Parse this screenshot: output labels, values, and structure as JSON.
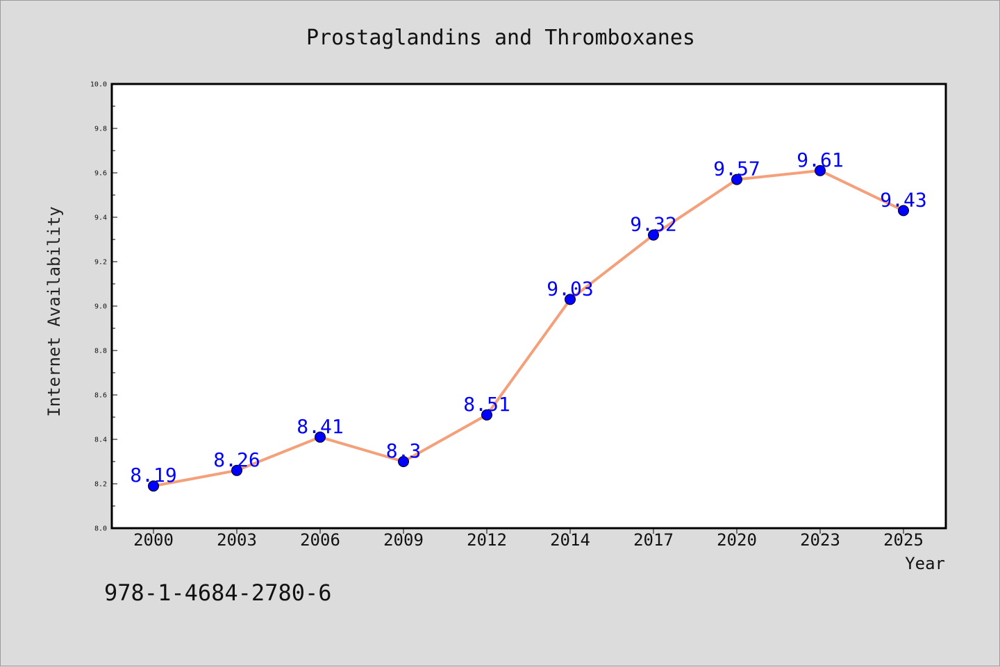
{
  "chart_data": {
    "type": "line",
    "title": "Prostaglandins and Thromboxanes",
    "xlabel": "Year",
    "ylabel": "Internet Availability",
    "categories": [
      "2000",
      "2003",
      "2006",
      "2009",
      "2012",
      "2014",
      "2017",
      "2020",
      "2023",
      "2025"
    ],
    "series": [
      {
        "values": [
          8.19,
          8.26,
          8.41,
          8.3,
          8.51,
          9.03,
          9.32,
          9.57,
          9.61,
          9.43
        ],
        "labels": [
          "8.19",
          "8.26",
          "8.41",
          "8.3",
          "8.51",
          "9.03",
          "9.32",
          "9.57",
          "9.61",
          "9.43"
        ],
        "line_color": "#f4a07a",
        "marker_color": "#0000ff"
      }
    ],
    "yticks": [
      "8.0",
      "8.2",
      "8.4",
      "8.6",
      "8.8",
      "9.0",
      "9.2",
      "9.4",
      "9.6",
      "9.8",
      "10.0"
    ],
    "ylim": [
      8.0,
      10.0
    ],
    "grid": false,
    "legend": "none"
  },
  "footer": {
    "isbn": "978-1-4684-2780-6"
  },
  "colors": {
    "background": "#dcdcdc",
    "plot_background": "#ffffff"
  }
}
